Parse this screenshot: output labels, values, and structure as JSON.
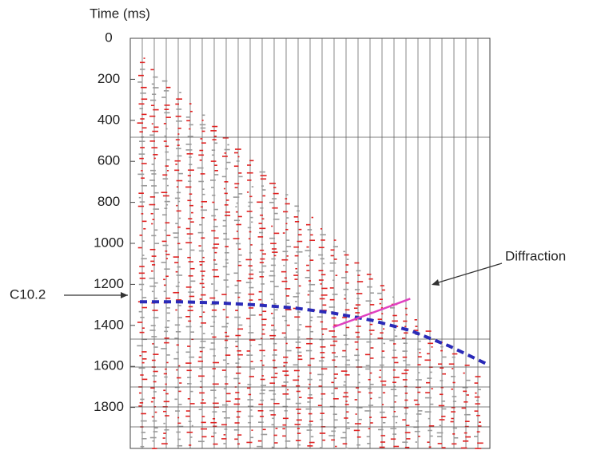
{
  "chart_data": {
    "type": "seismic",
    "y_label": "Time (ms)",
    "ylim": [
      0,
      2000
    ],
    "yticks": [
      0,
      200,
      400,
      600,
      800,
      1000,
      1200,
      1400,
      1600,
      1800
    ],
    "grid": true,
    "categories": [
      null,
      null,
      null,
      null,
      null,
      null,
      null,
      null,
      null,
      null
    ],
    "series": [
      {
        "name": "C10.2",
        "color": "#2a2ab8",
        "values": [
          1285,
          1285,
          1290,
          1300,
          1315,
          1340,
          1375,
          1425,
          1500,
          1590
        ]
      },
      {
        "name": "Diffraction",
        "color": "#e040c0",
        "values": [
          null,
          null,
          null,
          null,
          null,
          1409,
          1340,
          1270,
          null,
          null
        ]
      }
    ]
  }
}
